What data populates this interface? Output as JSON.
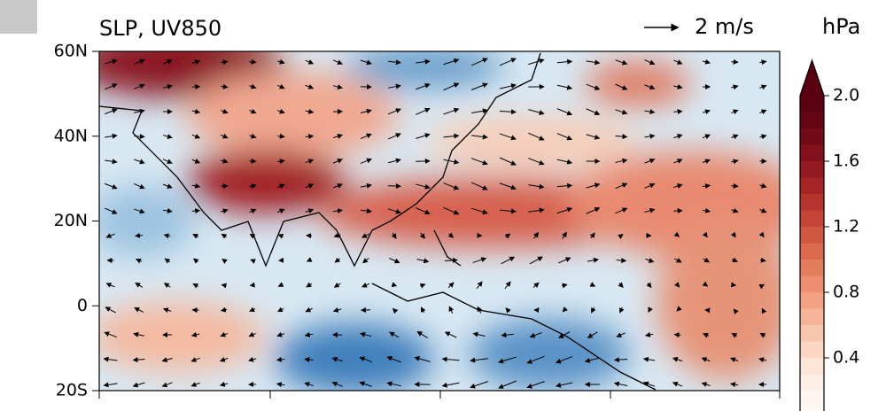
{
  "map": {
    "title": "SLP, UV850",
    "latlim": [
      -20,
      60
    ],
    "lat_ticks": [
      {
        "value": 60,
        "label": "60N"
      },
      {
        "value": 40,
        "label": "40N"
      },
      {
        "value": 20,
        "label": "20N"
      },
      0,
      {
        "value": -20,
        "label": "20S"
      }
    ]
  },
  "vector_key": {
    "label": "2 m/s"
  },
  "colorbar": {
    "unit": "hPa",
    "clim": [
      0,
      2
    ],
    "ticks": [
      {
        "value": 2,
        "label": "2.0"
      },
      1.6,
      1.2,
      0.8,
      0.4
    ],
    "colors": [
      "#fffaf7",
      "#fff5f0",
      "#fdeee6",
      "#fce4d6",
      "#fbd6c3",
      "#f9c6ae",
      "#f6b499",
      "#f3a383",
      "#ec8e6f",
      "#e47b5d",
      "#db6a4f",
      "#d05742",
      "#c44537",
      "#b5342e",
      "#a52526",
      "#931a20",
      "#82111b",
      "#720b17",
      "#650614",
      "#5a0211"
    ]
  }
}
